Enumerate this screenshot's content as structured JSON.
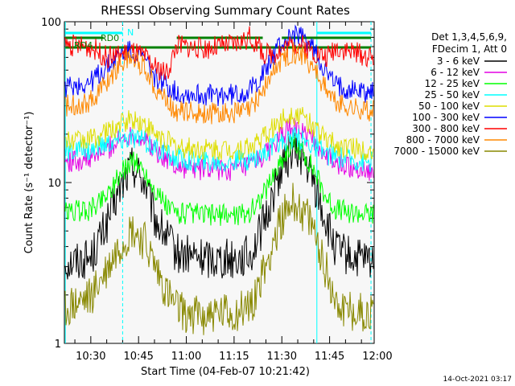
{
  "chart_data": {
    "type": "line",
    "title": "RHESSI Observing Summary Count Rates",
    "xlabel": "Start Time (04-Feb-07 10:21:42)",
    "ylabel": "Count Rate (s⁻¹ detector⁻¹)",
    "y_scale": "log",
    "ylim": [
      1,
      100
    ],
    "xlim": [
      "10:21:42",
      "11:59:00"
    ],
    "x_ticks": [
      "10:30",
      "10:45",
      "11:00",
      "11:15",
      "11:30",
      "11:45",
      "12:00"
    ],
    "y_ticks": [
      "1",
      "10",
      "100"
    ],
    "grid": false,
    "legend_position": "right",
    "legend_header": [
      "Det 1,3,4,5,6,9,",
      "FDecim 1, Att 0"
    ],
    "timestamp": "14-Oct-2021 03:17",
    "series": [
      {
        "name": "3 - 6 keV",
        "color": "#000000",
        "x": [
          "10:22",
          "10:30",
          "10:35",
          "10:39",
          "10:43",
          "10:47",
          "10:50",
          "10:54",
          "10:57",
          "11:05",
          "11:15",
          "11:20",
          "11:25",
          "11:29",
          "11:33",
          "11:36",
          "11:40",
          "11:44",
          "11:47",
          "11:52",
          "11:58"
        ],
        "values": [
          3.2,
          3.4,
          5.5,
          9.0,
          13.0,
          10.0,
          6.0,
          4.5,
          3.6,
          3.4,
          3.4,
          3.5,
          6.0,
          11.0,
          16.0,
          15.0,
          10.0,
          5.5,
          3.8,
          3.4,
          3.2
        ]
      },
      {
        "name": "6 - 12 keV",
        "color": "#e400e4",
        "x": [
          "10:22",
          "10:30",
          "10:35",
          "10:39",
          "10:43",
          "10:47",
          "10:50",
          "10:54",
          "10:57",
          "11:05",
          "11:15",
          "11:20",
          "11:25",
          "11:29",
          "11:33",
          "11:36",
          "11:40",
          "11:44",
          "11:47",
          "11:52",
          "11:58"
        ],
        "values": [
          13.5,
          14.0,
          16.0,
          18.5,
          20.0,
          18.5,
          16.0,
          14.0,
          12.5,
          12.0,
          12.0,
          12.5,
          15.0,
          18.5,
          22.0,
          21.0,
          18.0,
          14.5,
          13.0,
          12.5,
          12.0
        ]
      },
      {
        "name": "12 - 25 keV",
        "color": "#00ff00",
        "x": [
          "10:22",
          "10:30",
          "10:35",
          "10:39",
          "10:43",
          "10:47",
          "10:50",
          "10:54",
          "10:57",
          "11:05",
          "11:15",
          "11:20",
          "11:25",
          "11:29",
          "11:33",
          "11:36",
          "11:40",
          "11:44",
          "11:47",
          "11:52",
          "11:58"
        ],
        "values": [
          6.5,
          6.8,
          8.5,
          11.0,
          14.0,
          11.5,
          9.0,
          7.0,
          6.5,
          6.3,
          6.3,
          6.5,
          9.0,
          13.0,
          17.0,
          16.0,
          12.0,
          8.0,
          6.8,
          6.5,
          6.3
        ]
      },
      {
        "name": "25 - 50 keV",
        "color": "#00ffff",
        "x": [
          "10:22",
          "10:30",
          "10:35",
          "10:39",
          "10:43",
          "10:47",
          "10:50",
          "10:54",
          "10:57",
          "11:05",
          "11:15",
          "11:20",
          "11:25",
          "11:29",
          "11:33",
          "11:36",
          "11:40",
          "11:44",
          "11:47",
          "11:52",
          "11:58"
        ],
        "values": [
          15.5,
          16.0,
          17.5,
          18.5,
          19.0,
          18.0,
          16.5,
          15.0,
          14.0,
          13.5,
          13.5,
          14.0,
          15.5,
          17.5,
          19.0,
          18.5,
          17.0,
          15.0,
          14.5,
          14.0,
          13.5
        ]
      },
      {
        "name": "50 - 100 keV",
        "color": "#dede00",
        "x": [
          "10:22",
          "10:30",
          "10:35",
          "10:39",
          "10:43",
          "10:47",
          "10:50",
          "10:54",
          "10:57",
          "11:05",
          "11:15",
          "11:20",
          "11:25",
          "11:29",
          "11:33",
          "11:36",
          "11:40",
          "11:44",
          "11:47",
          "11:52",
          "11:58"
        ],
        "values": [
          18.0,
          18.5,
          20.5,
          23.0,
          25.0,
          23.0,
          20.0,
          18.0,
          16.5,
          16.0,
          16.0,
          16.5,
          19.5,
          23.5,
          27.0,
          26.0,
          22.5,
          18.5,
          17.0,
          16.5,
          16.0
        ]
      },
      {
        "name": "100 - 300 keV",
        "color": "#0000ff",
        "x": [
          "10:22",
          "10:30",
          "10:35",
          "10:39",
          "10:43",
          "10:47",
          "10:50",
          "10:54",
          "10:57",
          "11:05",
          "11:15",
          "11:20",
          "11:25",
          "11:29",
          "11:33",
          "11:36",
          "11:40",
          "11:44",
          "11:47",
          "11:52",
          "11:58"
        ],
        "values": [
          39,
          42,
          52,
          62,
          66,
          58,
          46,
          40,
          36,
          35,
          35,
          37,
          50,
          70,
          82,
          80,
          68,
          48,
          40,
          38,
          36
        ]
      },
      {
        "name": "300 - 800 keV",
        "color": "#ff0000",
        "x": [
          "10:22",
          "10:30",
          "10:35",
          "10:39",
          "10:43",
          "10:47",
          "10:50",
          "10:54",
          "10:57",
          "11:05",
          "11:15",
          "11:20",
          "11:25",
          "11:29",
          "11:33",
          "11:36",
          "11:40",
          "11:44",
          "11:47",
          "11:52",
          "11:58"
        ],
        "values": [
          72,
          70,
          60,
          62,
          65,
          60,
          52,
          48,
          72,
          68,
          72,
          80,
          62,
          66,
          72,
          72,
          65,
          60,
          70,
          65,
          60
        ]
      },
      {
        "name": "800 - 7000 keV",
        "color": "#ff8800",
        "x": [
          "10:22",
          "10:30",
          "10:35",
          "10:39",
          "10:43",
          "10:47",
          "10:50",
          "10:54",
          "10:57",
          "11:05",
          "11:15",
          "11:20",
          "11:25",
          "11:29",
          "11:33",
          "11:36",
          "11:40",
          "11:44",
          "11:47",
          "11:52",
          "11:58"
        ],
        "values": [
          30,
          32,
          42,
          55,
          60,
          52,
          40,
          32,
          28,
          27,
          27,
          28,
          40,
          55,
          65,
          63,
          52,
          38,
          31,
          29,
          28
        ]
      },
      {
        "name": "7000 - 15000 keV",
        "color": "#888800",
        "x": [
          "10:22",
          "10:30",
          "10:35",
          "10:39",
          "10:43",
          "10:47",
          "10:50",
          "10:54",
          "10:57",
          "11:05",
          "11:15",
          "11:20",
          "11:25",
          "11:29",
          "11:33",
          "11:36",
          "11:40",
          "11:44",
          "11:47",
          "11:52",
          "11:58"
        ],
        "values": [
          1.6,
          1.9,
          2.8,
          4.0,
          5.0,
          4.2,
          3.0,
          2.0,
          1.6,
          1.5,
          1.5,
          1.7,
          3.0,
          5.5,
          7.5,
          7.0,
          5.0,
          2.8,
          1.8,
          1.6,
          1.5
        ]
      }
    ],
    "annotations": [
      {
        "text": "N",
        "color": "#00ffff"
      },
      {
        "text": "RD0",
        "color": "#008000"
      },
      {
        "text": "RD4",
        "color": "#008000"
      }
    ]
  }
}
